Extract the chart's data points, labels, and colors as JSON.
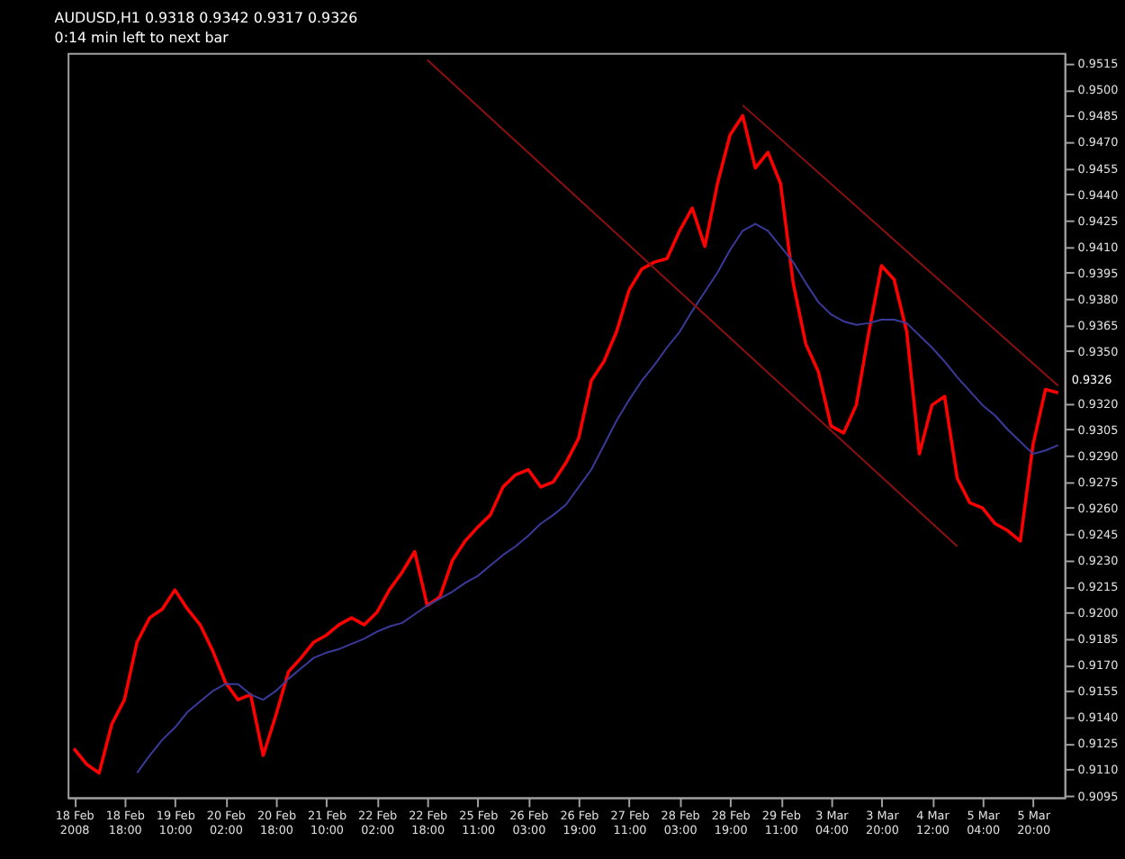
{
  "chart_data": {
    "type": "line",
    "title": "AUDUSD,H1  0.9318 0.9342 0.9317 0.9326",
    "subtitle": "0:14 min left to next bar",
    "categories": [
      "18 Feb 2008",
      null,
      null,
      null,
      "18 Feb 18:00",
      null,
      null,
      null,
      "19 Feb 10:00",
      null,
      null,
      null,
      "20 Feb 02:00",
      null,
      null,
      null,
      "20 Feb 18:00",
      null,
      null,
      null,
      "21 Feb 10:00",
      null,
      null,
      null,
      "22 Feb 02:00",
      null,
      null,
      null,
      "22 Feb 18:00",
      null,
      null,
      null,
      "25 Feb 11:00",
      null,
      null,
      null,
      "26 Feb 03:00",
      null,
      null,
      null,
      "26 Feb 19:00",
      null,
      null,
      null,
      "27 Feb 11:00",
      null,
      null,
      null,
      "28 Feb 03:00",
      null,
      null,
      null,
      "28 Feb 19:00",
      null,
      null,
      null,
      "29 Feb 11:00",
      null,
      null,
      null,
      "3 Mar 04:00",
      null,
      null,
      null,
      "3 Mar 20:00",
      null,
      null,
      null,
      "4 Mar 12:00",
      null,
      null,
      null,
      "5 Mar 04:00",
      null,
      null,
      null,
      "5 Mar 20:00",
      null,
      null
    ],
    "series": [
      {
        "type": "line",
        "color": "#ff0000",
        "values": [
          0.9122,
          0.9113,
          0.9108,
          0.9136,
          0.915,
          0.9183,
          0.9197,
          0.9202,
          0.9213,
          0.9202,
          0.9193,
          0.9178,
          0.916,
          0.915,
          0.9153,
          0.9118,
          0.9141,
          0.9166,
          0.9174,
          0.9183,
          0.9187,
          0.9193,
          0.9197,
          0.9193,
          0.92,
          0.9213,
          0.9223,
          0.9235,
          0.9204,
          0.9209,
          0.923,
          0.9241,
          0.9249,
          0.9256,
          0.9272,
          0.9279,
          0.9282,
          0.9272,
          0.9275,
          0.9286,
          0.93,
          0.9333,
          0.9344,
          0.9361,
          0.9385,
          0.9397,
          0.9401,
          0.9403,
          0.9419,
          0.9432,
          0.941,
          0.9446,
          0.9474,
          0.9485,
          0.9455,
          0.9464,
          0.9446,
          0.9389,
          0.9354,
          0.9338,
          0.9307,
          0.9303,
          0.9319,
          0.9361,
          0.9399,
          0.9391,
          0.9361,
          0.9291,
          0.9319,
          0.9324,
          0.9277,
          0.9263,
          0.926,
          0.9251,
          0.9247,
          0.9241,
          0.9296,
          0.9328,
          0.9326
        ]
      },
      {
        "type": "line",
        "color": "#3a3a9a",
        "values": [
          null,
          null,
          null,
          null,
          null,
          0.9108,
          0.9118,
          0.9127,
          0.9134,
          0.9143,
          0.9149,
          0.9155,
          0.9159,
          0.9159,
          0.9153,
          0.915,
          0.9155,
          0.9162,
          0.9168,
          0.9174,
          0.9177,
          0.9179,
          0.9182,
          0.9185,
          0.9189,
          0.9192,
          0.9194,
          0.9199,
          0.9204,
          0.9208,
          0.9212,
          0.9217,
          0.9221,
          0.9227,
          0.9233,
          0.9238,
          0.9244,
          0.9251,
          0.9256,
          0.9262,
          0.9272,
          0.9282,
          0.9296,
          0.931,
          0.9322,
          0.9333,
          0.9342,
          0.9352,
          0.9361,
          0.9373,
          0.9384,
          0.9395,
          0.9408,
          0.9419,
          0.9423,
          0.9419,
          0.941,
          0.9401,
          0.9389,
          0.9378,
          0.9371,
          0.9367,
          0.9365,
          0.9366,
          0.9368,
          0.9368,
          0.9366,
          0.9359,
          0.9352,
          0.9344,
          0.9335,
          0.9327,
          0.9319,
          0.9313,
          0.9305,
          0.9298,
          0.9291,
          0.9293,
          0.9296
        ]
      },
      {
        "type": "line",
        "color": "#8b1010",
        "values": [
          null,
          null,
          null,
          null,
          null,
          null,
          null,
          null,
          null,
          null,
          null,
          null,
          null,
          null,
          null,
          null,
          null,
          null,
          null,
          null,
          null,
          null,
          null,
          null,
          null,
          null,
          null,
          null,
          0.9517,
          null,
          null,
          null,
          null,
          null,
          null,
          null,
          null,
          null,
          null,
          null,
          null,
          null,
          null,
          null,
          null,
          null,
          null,
          null,
          null,
          null,
          null,
          null,
          null,
          null,
          null,
          null,
          null,
          null,
          null,
          null,
          null,
          null,
          null,
          null,
          null,
          null,
          null,
          null,
          null,
          null,
          0.9238,
          null,
          null,
          null,
          null,
          null,
          null,
          null,
          null
        ]
      },
      {
        "type": "line",
        "color": "#8b1010",
        "values": [
          null,
          null,
          null,
          null,
          null,
          null,
          null,
          null,
          null,
          null,
          null,
          null,
          null,
          null,
          null,
          null,
          null,
          null,
          null,
          null,
          null,
          null,
          null,
          null,
          null,
          null,
          null,
          null,
          null,
          null,
          null,
          null,
          null,
          null,
          null,
          null,
          null,
          null,
          null,
          null,
          null,
          null,
          null,
          null,
          null,
          null,
          null,
          null,
          null,
          null,
          null,
          null,
          null,
          0.9491,
          null,
          null,
          null,
          null,
          null,
          null,
          null,
          null,
          null,
          null,
          null,
          null,
          null,
          null,
          null,
          null,
          null,
          null,
          null,
          null,
          null,
          null,
          null,
          null,
          0.933
        ]
      }
    ],
    "ylim": [
      0.9094,
      0.9521
    ],
    "yticks": [
      0.9515,
      {
        "value": 0.95,
        "label": "0.9500"
      },
      0.9485,
      {
        "value": 0.947,
        "label": "0.9470"
      },
      0.9455,
      {
        "value": 0.944,
        "label": "0.9440"
      },
      0.9425,
      {
        "value": 0.941,
        "label": "0.9410"
      },
      0.9395,
      {
        "value": 0.938,
        "label": "0.9380"
      },
      0.9365,
      {
        "value": 0.935,
        "label": "0.9350"
      },
      {
        "value": 0.932,
        "label": "0.9320"
      },
      0.9305,
      {
        "value": 0.929,
        "label": "0.9290"
      },
      0.9275,
      {
        "value": 0.926,
        "label": "0.9260"
      },
      0.9245,
      {
        "value": 0.923,
        "label": "0.9230"
      },
      0.9215,
      {
        "value": 0.92,
        "label": "0.9200"
      },
      0.9185,
      {
        "value": 0.917,
        "label": "0.9170"
      },
      0.9155,
      {
        "value": 0.914,
        "label": "0.9140"
      },
      0.9125,
      {
        "value": 0.911,
        "label": "0.9110"
      },
      0.9095
    ],
    "annotations": [
      "0.9326"
    ],
    "grid": false,
    "legend": false
  }
}
